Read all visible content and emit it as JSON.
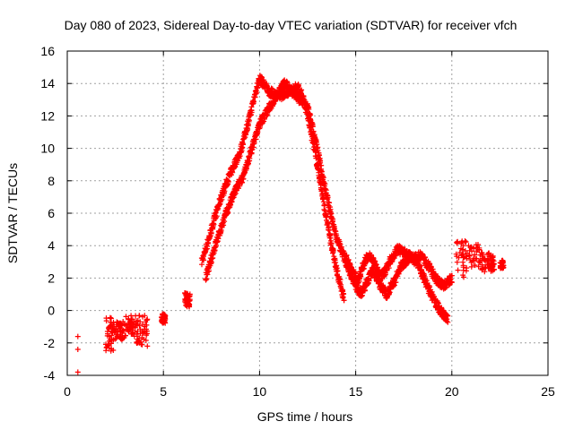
{
  "chart_data": {
    "type": "scatter",
    "title": "Day 080 of 2023, Sidereal Day-to-day VTEC variation (SDTVAR) for receiver vfch",
    "xlabel": "GPS time / hours",
    "ylabel": "SDTVAR / TECUs",
    "xlim": [
      0,
      25
    ],
    "ylim": [
      -4,
      16
    ],
    "xticks": [
      0,
      5,
      10,
      15,
      20,
      25
    ],
    "yticks": [
      -4,
      -2,
      0,
      2,
      4,
      6,
      8,
      10,
      12,
      14,
      16
    ],
    "grid": true,
    "marker": "+",
    "series": [
      {
        "name": "SDTVAR",
        "color": "#ff0000",
        "trace_a": {
          "x": [
            7.0,
            7.5,
            8.0,
            8.5,
            9.0,
            9.5,
            9.8,
            10.0,
            10.2,
            10.5,
            11.0,
            11.5,
            12.0,
            12.3,
            12.6,
            13.0,
            13.5,
            14.0,
            14.4
          ],
          "y": [
            3.0,
            5.0,
            7.0,
            8.5,
            9.8,
            12.0,
            13.5,
            14.3,
            14.0,
            13.5,
            13.2,
            13.5,
            13.8,
            13.0,
            11.5,
            9.0,
            5.5,
            2.5,
            0.7
          ]
        },
        "trace_b": {
          "x": [
            7.2,
            7.7,
            8.2,
            8.7,
            9.2,
            9.6,
            10.0,
            10.5,
            11.0,
            11.3,
            11.7,
            12.1,
            12.5,
            13.0,
            13.5,
            14.0,
            14.5,
            15.0,
            15.3,
            15.6,
            15.9,
            16.3,
            16.6,
            17.0,
            17.4,
            17.8,
            18.2,
            18.6,
            19.0,
            19.4,
            19.8
          ],
          "y": [
            2.0,
            4.0,
            5.8,
            7.3,
            8.4,
            10.0,
            11.5,
            12.5,
            13.5,
            14.0,
            13.5,
            13.0,
            12.5,
            10.0,
            7.0,
            4.5,
            3.0,
            1.5,
            1.0,
            1.8,
            2.5,
            1.5,
            1.0,
            1.8,
            2.8,
            3.3,
            3.0,
            1.8,
            0.8,
            0.0,
            -0.6
          ]
        },
        "trace_c": {
          "x": [
            14.5,
            14.8,
            15.1,
            15.4,
            15.7,
            16.0,
            16.3,
            16.6,
            16.9,
            17.2,
            17.6,
            18.0,
            18.4,
            18.8,
            19.2,
            19.6,
            20.0
          ],
          "y": [
            3.2,
            2.5,
            1.8,
            2.8,
            3.5,
            2.8,
            2.0,
            2.6,
            3.3,
            3.8,
            3.5,
            3.2,
            3.4,
            2.7,
            1.9,
            1.5,
            2.0
          ]
        },
        "early_clusters": [
          {
            "x_range": [
              2.0,
              2.5
            ],
            "y_range": [
              -2.5,
              -0.4
            ]
          },
          {
            "x_range": [
              2.5,
              3.0
            ],
            "y_range": [
              -1.8,
              -0.6
            ]
          },
          {
            "x_range": [
              3.0,
              3.6
            ],
            "y_range": [
              -1.6,
              -0.3
            ]
          },
          {
            "x_range": [
              3.6,
              4.2
            ],
            "y_range": [
              -2.2,
              -0.3
            ]
          },
          {
            "x_range": [
              4.9,
              5.1
            ],
            "y_range": [
              -0.8,
              -0.2
            ]
          },
          {
            "x_range": [
              6.1,
              6.4
            ],
            "y_range": [
              0.2,
              1.1
            ]
          }
        ],
        "late_clusters": [
          {
            "x_range": [
              20.2,
              20.8
            ],
            "y_range": [
              2.0,
              4.4
            ]
          },
          {
            "x_range": [
              20.8,
              21.5
            ],
            "y_range": [
              2.6,
              4.1
            ]
          },
          {
            "x_range": [
              21.5,
              22.0
            ],
            "y_range": [
              2.3,
              3.6
            ]
          },
          {
            "x_range": [
              22.0,
              22.2
            ],
            "y_range": [
              2.4,
              3.4
            ]
          },
          {
            "x_range": [
              22.5,
              22.7
            ],
            "y_range": [
              2.6,
              3.1
            ]
          }
        ],
        "isolated_points": [
          {
            "x": 0.55,
            "y": -1.6
          },
          {
            "x": 0.55,
            "y": -2.4
          },
          {
            "x": 0.55,
            "y": -3.8
          }
        ]
      }
    ]
  }
}
